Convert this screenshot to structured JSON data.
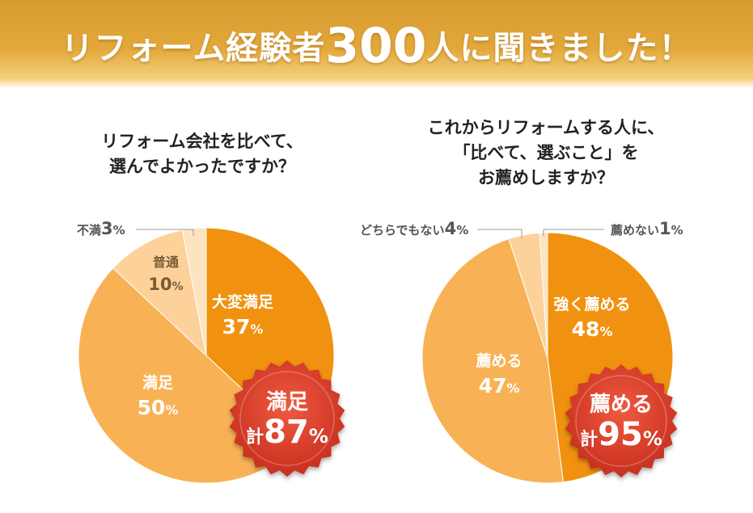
{
  "banner": {
    "title_before": "リフォーム経験者",
    "title_number": "300",
    "title_after": "人に聞きました！"
  },
  "colors": {
    "banner_dark": "#d79a2f",
    "slice_dark": "#f0920f",
    "slice_mid": "#f8b255",
    "slice_light": "#fdd29a",
    "slice_pale": "#fde3bf",
    "badge_red": "#c82e1f"
  },
  "chart_data": [
    {
      "type": "pie",
      "question_lines": [
        "リフォーム会社を比べて、",
        "選んでよかったですか？"
      ],
      "slices": [
        {
          "label": "大変満足",
          "value": 37,
          "unit": "%"
        },
        {
          "label": "満足",
          "value": 50,
          "unit": "%"
        },
        {
          "label": "普通",
          "value": 10,
          "unit": "%"
        },
        {
          "label": "不満",
          "value": 3,
          "unit": "%"
        }
      ],
      "badge": {
        "title": "満足",
        "prefix": "計",
        "value": "87",
        "unit": "%"
      }
    },
    {
      "type": "pie",
      "question_lines": [
        "これからリフォームする人に、",
        "「比べて、選ぶこと」を",
        "お薦めしますか？"
      ],
      "slices": [
        {
          "label": "強く薦める",
          "value": 48,
          "unit": "%"
        },
        {
          "label": "薦める",
          "value": 47,
          "unit": "%"
        },
        {
          "label": "どちらでもない",
          "value": 4,
          "unit": "%"
        },
        {
          "label": "薦めない",
          "value": 1,
          "unit": "%"
        }
      ],
      "badge": {
        "title": "薦める",
        "prefix": "計",
        "value": "95",
        "unit": "%"
      }
    }
  ]
}
